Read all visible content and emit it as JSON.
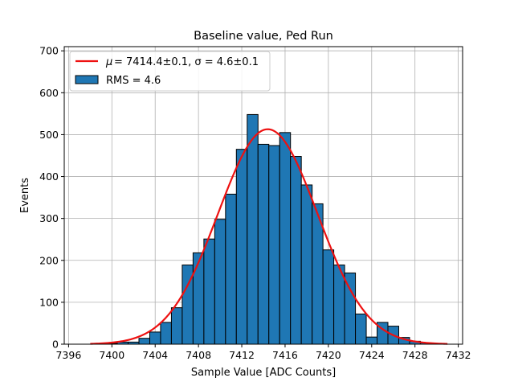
{
  "chart_data": {
    "type": "bar",
    "title": "Baseline value, Ped Run",
    "xlabel": "Sample Value [ADC Counts]",
    "ylabel": "Events",
    "xlim": [
      7395.6,
      7432.4
    ],
    "ylim": [
      0,
      710
    ],
    "xticks": [
      "7396",
      "7400",
      "7404",
      "7408",
      "7412",
      "7416",
      "7420",
      "7424",
      "7428",
      "7432"
    ],
    "yticks": [
      "0",
      "100",
      "200",
      "300",
      "400",
      "500",
      "600",
      "700"
    ],
    "grid": true,
    "legend_position": "top-left",
    "bin_width": 1,
    "bins": [
      {
        "x": 7400,
        "count": 2
      },
      {
        "x": 7401,
        "count": 5
      },
      {
        "x": 7402,
        "count": 5
      },
      {
        "x": 7403,
        "count": 14
      },
      {
        "x": 7404,
        "count": 29
      },
      {
        "x": 7405,
        "count": 52
      },
      {
        "x": 7406,
        "count": 87
      },
      {
        "x": 7407,
        "count": 189
      },
      {
        "x": 7408,
        "count": 218
      },
      {
        "x": 7409,
        "count": 251
      },
      {
        "x": 7410,
        "count": 298
      },
      {
        "x": 7411,
        "count": 358
      },
      {
        "x": 7412,
        "count": 465
      },
      {
        "x": 7413,
        "count": 548
      },
      {
        "x": 7414,
        "count": 477
      },
      {
        "x": 7415,
        "count": 474
      },
      {
        "x": 7416,
        "count": 505
      },
      {
        "x": 7417,
        "count": 448
      },
      {
        "x": 7418,
        "count": 380
      },
      {
        "x": 7419,
        "count": 335
      },
      {
        "x": 7420,
        "count": 225
      },
      {
        "x": 7421,
        "count": 189
      },
      {
        "x": 7422,
        "count": 170
      },
      {
        "x": 7423,
        "count": 72
      },
      {
        "x": 7424,
        "count": 17
      },
      {
        "x": 7425,
        "count": 52
      },
      {
        "x": 7426,
        "count": 43
      },
      {
        "x": 7427,
        "count": 16
      },
      {
        "x": 7428,
        "count": 7
      },
      {
        "x": 7429,
        "count": 3
      }
    ],
    "fit": {
      "mu": 7414.4,
      "sigma": 4.6,
      "amplitude": 513,
      "x_range": [
        7398,
        7431
      ],
      "label_text": "= 7414.4±0.1, σ = 4.6±0.1"
    },
    "legend": {
      "fit_label": "= 7414.4±0.1, σ = 4.6±0.1",
      "hist_label": "RMS = 4.6"
    },
    "colors": {
      "bar": "#1f77b4",
      "bar_edge": "#000000",
      "fit": "#ee1111",
      "grid": "#b0b0b0"
    }
  }
}
